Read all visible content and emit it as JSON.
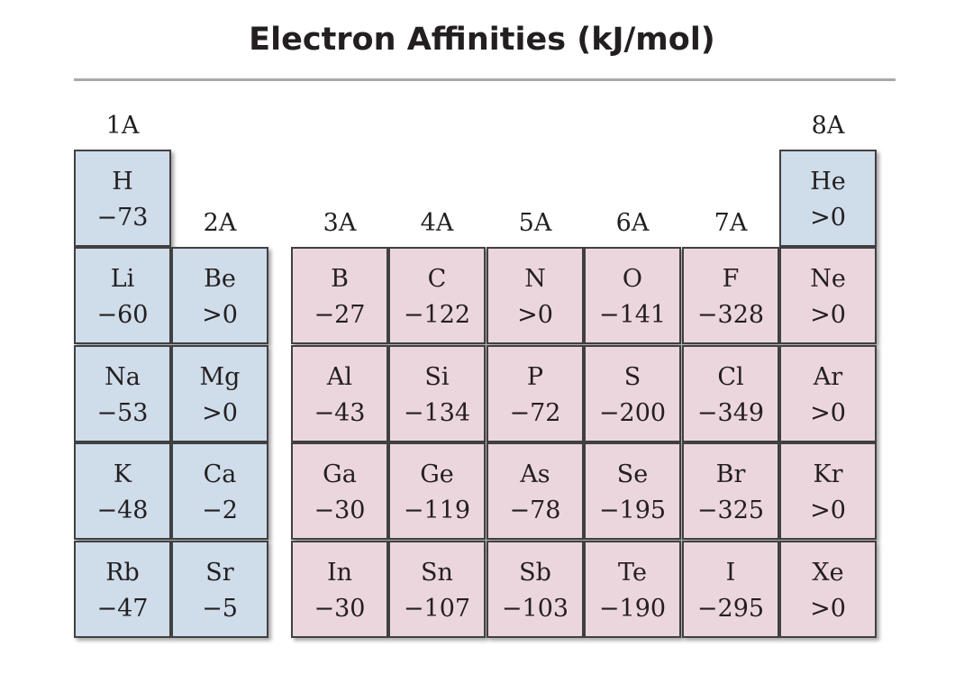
{
  "title": "Electron Affinities (kJ/mol)",
  "group_labels": {
    "g1": "1A",
    "g2": "2A",
    "g3": "3A",
    "g4": "4A",
    "g5": "5A",
    "g6": "6A",
    "g7": "7A",
    "g8": "8A"
  },
  "elements": {
    "H": {
      "symbol": "H",
      "value": "−73"
    },
    "He": {
      "symbol": "He",
      "value": ">0"
    },
    "Li": {
      "symbol": "Li",
      "value": "−60"
    },
    "Be": {
      "symbol": "Be",
      "value": ">0"
    },
    "B": {
      "symbol": "B",
      "value": "−27"
    },
    "C": {
      "symbol": "C",
      "value": "−122"
    },
    "N": {
      "symbol": "N",
      "value": ">0"
    },
    "O": {
      "symbol": "O",
      "value": "−141"
    },
    "F": {
      "symbol": "F",
      "value": "−328"
    },
    "Ne": {
      "symbol": "Ne",
      "value": ">0"
    },
    "Na": {
      "symbol": "Na",
      "value": "−53"
    },
    "Mg": {
      "symbol": "Mg",
      "value": ">0"
    },
    "Al": {
      "symbol": "Al",
      "value": "−43"
    },
    "Si": {
      "symbol": "Si",
      "value": "−134"
    },
    "P": {
      "symbol": "P",
      "value": "−72"
    },
    "S": {
      "symbol": "S",
      "value": "−200"
    },
    "Cl": {
      "symbol": "Cl",
      "value": "−349"
    },
    "Ar": {
      "symbol": "Ar",
      "value": ">0"
    },
    "K": {
      "symbol": "K",
      "value": "−48"
    },
    "Ca": {
      "symbol": "Ca",
      "value": "−2"
    },
    "Ga": {
      "symbol": "Ga",
      "value": "−30"
    },
    "Ge": {
      "symbol": "Ge",
      "value": "−119"
    },
    "As": {
      "symbol": "As",
      "value": "−78"
    },
    "Se": {
      "symbol": "Se",
      "value": "−195"
    },
    "Br": {
      "symbol": "Br",
      "value": "−325"
    },
    "Kr": {
      "symbol": "Kr",
      "value": ">0"
    },
    "Rb": {
      "symbol": "Rb",
      "value": "−47"
    },
    "Sr": {
      "symbol": "Sr",
      "value": "−5"
    },
    "In": {
      "symbol": "In",
      "value": "−30"
    },
    "Sn": {
      "symbol": "Sn",
      "value": "−107"
    },
    "Sb": {
      "symbol": "Sb",
      "value": "−103"
    },
    "Te": {
      "symbol": "Te",
      "value": "−190"
    },
    "I": {
      "symbol": "I",
      "value": "−295"
    },
    "Xe": {
      "symbol": "Xe",
      "value": ">0"
    }
  },
  "colors": {
    "s_block_and_noble": "#cfdcea",
    "p_block": "#ecd6dd",
    "border": "#414042",
    "rule": "#a7a9ac"
  }
}
